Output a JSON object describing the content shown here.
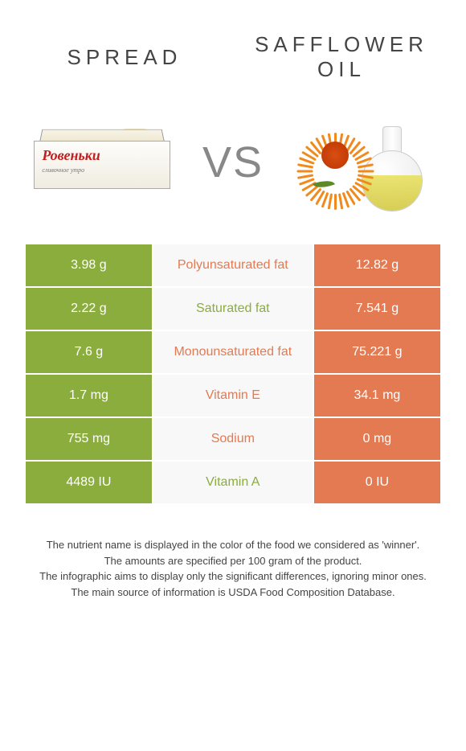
{
  "colors": {
    "left": "#8aad3e",
    "right": "#e47a51",
    "mid_bg": "#f8f8f8",
    "page_bg": "#ffffff"
  },
  "header": {
    "left_title": "Spread",
    "right_title": "Safflower oil",
    "vs": "VS"
  },
  "images": {
    "spread_brand": "Ровеньки",
    "spread_sub": "сливочное утро"
  },
  "rows": [
    {
      "left": "3.98 g",
      "label": "Polyunsaturated fat",
      "right": "12.82 g",
      "winner": "right"
    },
    {
      "left": "2.22 g",
      "label": "Saturated fat",
      "right": "7.541 g",
      "winner": "left"
    },
    {
      "left": "7.6 g",
      "label": "Monounsaturated fat",
      "right": "75.221 g",
      "winner": "right"
    },
    {
      "left": "1.7 mg",
      "label": "Vitamin E",
      "right": "34.1 mg",
      "winner": "right"
    },
    {
      "left": "755 mg",
      "label": "Sodium",
      "right": "0 mg",
      "winner": "right"
    },
    {
      "left": "4489 IU",
      "label": "Vitamin A",
      "right": "0 IU",
      "winner": "left"
    }
  ],
  "notes": [
    "The nutrient name is displayed in the color of the food we considered as 'winner'.",
    "The amounts are specified per 100 gram of the product.",
    "The infographic aims to display only the significant differences, ignoring minor ones.",
    "The main source of information is USDA Food Composition Database."
  ]
}
